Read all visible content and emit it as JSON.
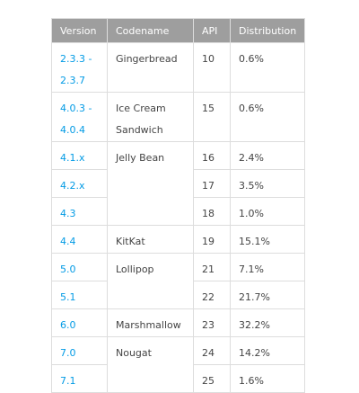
{
  "headers": {
    "version": "Version",
    "codename": "Codename",
    "api": "API",
    "distribution": "Distribution"
  },
  "rows": [
    {
      "version": [
        "2.3.3 -",
        "2.3.7"
      ],
      "codename": [
        "Gingerbread"
      ],
      "api": "10",
      "distribution": "0.6%"
    },
    {
      "version": [
        "4.0.3 -",
        "4.0.4"
      ],
      "codename": [
        "Ice Cream",
        "Sandwich"
      ],
      "api": "15",
      "distribution": "0.6%"
    },
    {
      "version": [
        "4.1.x"
      ],
      "codename": [
        "Jelly Bean"
      ],
      "api": "16",
      "distribution": "2.4%"
    },
    {
      "version": [
        "4.2.x"
      ],
      "api": "17",
      "distribution": "3.5%"
    },
    {
      "version": [
        "4.3"
      ],
      "api": "18",
      "distribution": "1.0%"
    },
    {
      "version": [
        "4.4"
      ],
      "codename": [
        "KitKat"
      ],
      "api": "19",
      "distribution": "15.1%"
    },
    {
      "version": [
        "5.0"
      ],
      "codename": [
        "Lollipop"
      ],
      "api": "21",
      "distribution": "7.1%"
    },
    {
      "version": [
        "5.1"
      ],
      "api": "22",
      "distribution": "21.7%"
    },
    {
      "version": [
        "6.0"
      ],
      "codename": [
        "Marshmallow"
      ],
      "api": "23",
      "distribution": "32.2%"
    },
    {
      "version": [
        "7.0"
      ],
      "codename": [
        "Nougat"
      ],
      "api": "24",
      "distribution": "14.2%"
    },
    {
      "version": [
        "7.1"
      ],
      "api": "25",
      "distribution": "1.6%"
    }
  ],
  "colors": {
    "header_bg": "#9e9e9e",
    "link": "#039be5",
    "text": "#444444",
    "border": "#dddddd"
  }
}
